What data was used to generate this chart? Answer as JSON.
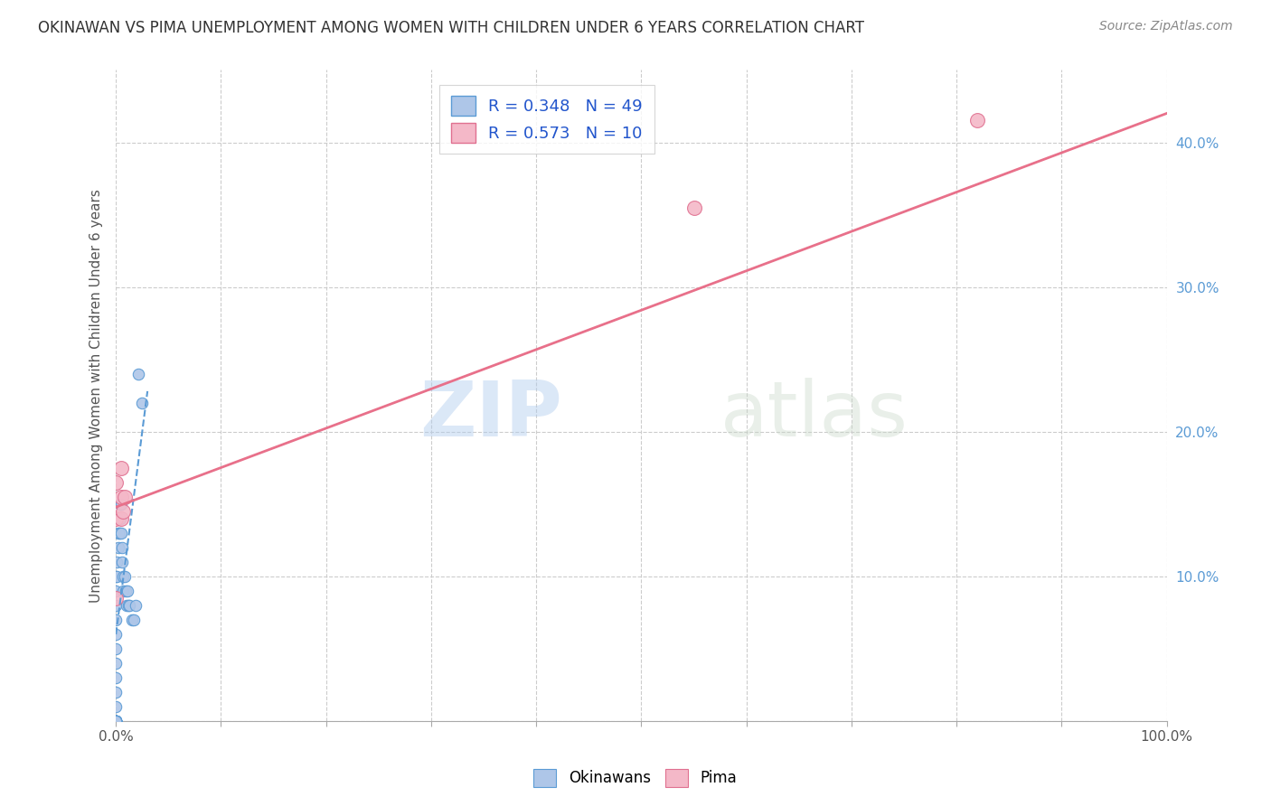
{
  "title": "OKINAWAN VS PIMA UNEMPLOYMENT AMONG WOMEN WITH CHILDREN UNDER 6 YEARS CORRELATION CHART",
  "source": "Source: ZipAtlas.com",
  "ylabel": "Unemployment Among Women with Children Under 6 years",
  "xlim": [
    0.0,
    1.0
  ],
  "ylim": [
    0.0,
    0.45
  ],
  "xticks": [
    0.0,
    0.1,
    0.2,
    0.3,
    0.4,
    0.5,
    0.6,
    0.7,
    0.8,
    0.9,
    1.0
  ],
  "yticks": [
    0.0,
    0.1,
    0.2,
    0.3,
    0.4
  ],
  "ytick_labels": [
    "",
    "10.0%",
    "20.0%",
    "30.0%",
    "40.0%"
  ],
  "xtick_labels_sparse": {
    "0.0": "0.0%",
    "1.0": "100.0%"
  },
  "okinawan_color": "#aec6e8",
  "pima_color": "#f4b8c8",
  "okinawan_edge": "#5b9bd5",
  "pima_edge": "#e07090",
  "trend_blue_color": "#5b9bd5",
  "trend_pink_color": "#e8708a",
  "R_okinawan": 0.348,
  "N_okinawan": 49,
  "R_pima": 0.573,
  "N_pima": 10,
  "watermark_zip": "ZIP",
  "watermark_atlas": "atlas",
  "background_color": "#ffffff",
  "grid_color": "#cccccc",
  "okinawan_x": [
    0.0,
    0.0,
    0.0,
    0.0,
    0.0,
    0.0,
    0.0,
    0.0,
    0.0,
    0.0,
    0.0,
    0.0,
    0.0,
    0.0,
    0.0,
    0.0,
    0.0,
    0.0,
    0.0,
    0.0,
    0.0,
    0.0,
    0.0,
    0.0,
    0.001,
    0.001,
    0.002,
    0.002,
    0.003,
    0.003,
    0.004,
    0.004,
    0.005,
    0.005,
    0.006,
    0.006,
    0.007,
    0.007,
    0.008,
    0.009,
    0.01,
    0.011,
    0.012,
    0.013,
    0.015,
    0.017,
    0.019,
    0.021,
    0.025
  ],
  "okinawan_y": [
    0.0,
    0.0,
    0.0,
    0.0,
    0.0,
    0.0,
    0.0,
    0.0,
    0.0,
    0.0,
    0.0,
    0.0,
    0.0,
    0.0,
    0.01,
    0.02,
    0.03,
    0.04,
    0.05,
    0.06,
    0.07,
    0.08,
    0.09,
    0.1,
    0.1,
    0.11,
    0.12,
    0.13,
    0.13,
    0.14,
    0.14,
    0.15,
    0.15,
    0.13,
    0.12,
    0.11,
    0.1,
    0.09,
    0.1,
    0.09,
    0.08,
    0.09,
    0.08,
    0.08,
    0.07,
    0.07,
    0.08,
    0.24,
    0.22
  ],
  "pima_x": [
    0.0,
    0.0,
    0.0,
    0.005,
    0.005,
    0.005,
    0.007,
    0.008,
    0.55,
    0.82
  ],
  "pima_y": [
    0.085,
    0.14,
    0.165,
    0.14,
    0.155,
    0.175,
    0.145,
    0.155,
    0.355,
    0.415
  ],
  "pima_trend_x0": 0.0,
  "pima_trend_y0": 0.148,
  "pima_trend_x1": 1.0,
  "pima_trend_y1": 0.42,
  "ok_trend_x0": 0.0,
  "ok_trend_y0": 0.06,
  "ok_trend_x1": 0.025,
  "ok_trend_y1": 0.2
}
